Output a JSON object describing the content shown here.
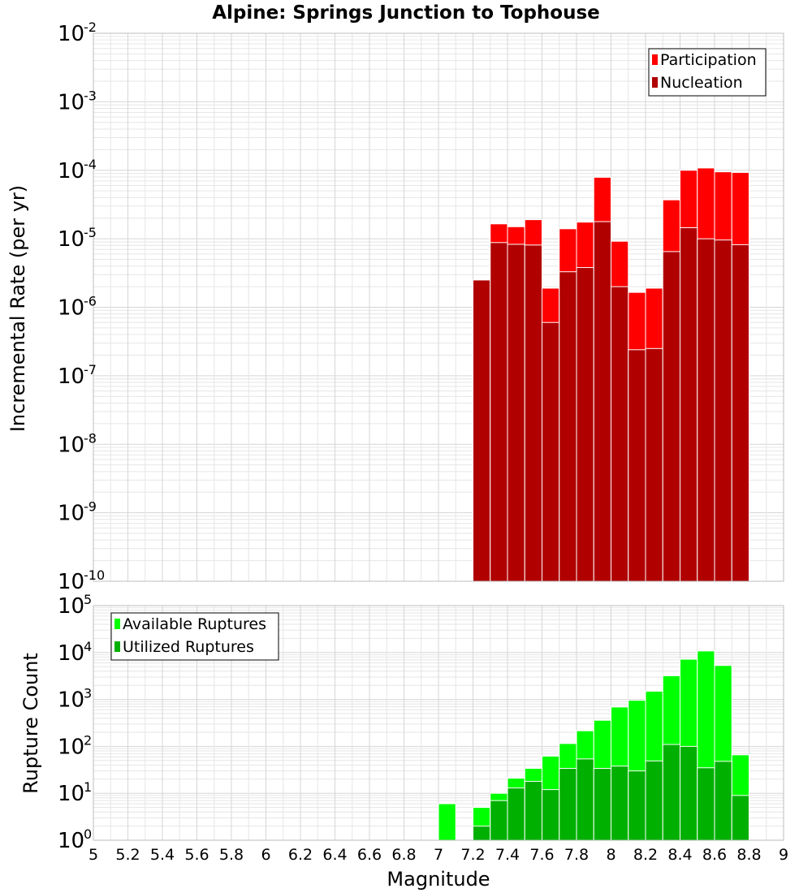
{
  "chart_data": [
    {
      "type": "bar",
      "title": "Alpine: Springs Junction to Tophouse",
      "xlabel": "Magnitude",
      "ylabel": "Incremental Rate (per yr)",
      "yscale": "log",
      "ylim": [
        1e-10,
        0.01
      ],
      "xlim": [
        5,
        9
      ],
      "bin_width": 0.1,
      "x": [
        7.25,
        7.35,
        7.45,
        7.55,
        7.65,
        7.75,
        7.85,
        7.95,
        8.05,
        8.15,
        8.25,
        8.35,
        8.45,
        8.55,
        8.65,
        8.75
      ],
      "series": [
        {
          "name": "Participation",
          "color": "#ff0000",
          "values": [
            2.5e-06,
            1.65e-05,
            1.5e-05,
            1.9e-05,
            1.9e-06,
            1.4e-05,
            1.75e-05,
            7.9e-05,
            9.2e-06,
            1.65e-06,
            1.9e-06,
            3.7e-05,
            0.0001,
            0.000108,
            9.5e-05,
            9.3e-05
          ]
        },
        {
          "name": "Nucleation",
          "color": "#b00000",
          "values": [
            2.5e-06,
            8.8e-06,
            8.3e-06,
            8.1e-06,
            6e-07,
            3.3e-06,
            3.8e-06,
            1.78e-05,
            2e-06,
            2.4e-07,
            2.5e-07,
            6.5e-06,
            1.45e-05,
            1e-05,
            9.6e-06,
            8.2e-06
          ]
        }
      ],
      "legend": "top-right",
      "grid": true
    },
    {
      "type": "bar",
      "xlabel": "Magnitude",
      "ylabel": "Rupture Count",
      "yscale": "log",
      "ylim": [
        1,
        100000.0
      ],
      "xlim": [
        5,
        9
      ],
      "bin_width": 0.1,
      "x": [
        7.05,
        7.25,
        7.35,
        7.45,
        7.55,
        7.65,
        7.75,
        7.85,
        7.95,
        8.05,
        8.15,
        8.25,
        8.35,
        8.45,
        8.55,
        8.65,
        8.75
      ],
      "series": [
        {
          "name": "Available Ruptures",
          "color": "#00ff00",
          "values": [
            6,
            5,
            10,
            21,
            34,
            62,
            115,
            215,
            360,
            690,
            960,
            1500,
            3200,
            7200,
            10800,
            5300,
            66
          ]
        },
        {
          "name": "Utilized Ruptures",
          "color": "#00b000",
          "values": [
            0,
            2,
            7,
            13,
            18,
            12,
            34,
            54,
            34,
            38,
            30,
            49,
            110,
            100,
            35,
            48,
            9
          ]
        }
      ],
      "legend": "top-left",
      "grid": true,
      "x_ticks": [
        "5",
        "5.2",
        "5.4",
        "5.6",
        "5.8",
        "6",
        "6.2",
        "6.4",
        "6.6",
        "6.8",
        "7",
        "7.2",
        "7.4",
        "7.6",
        "7.8",
        "8",
        "8.2",
        "8.4",
        "8.6",
        "8.8",
        "9"
      ]
    }
  ]
}
